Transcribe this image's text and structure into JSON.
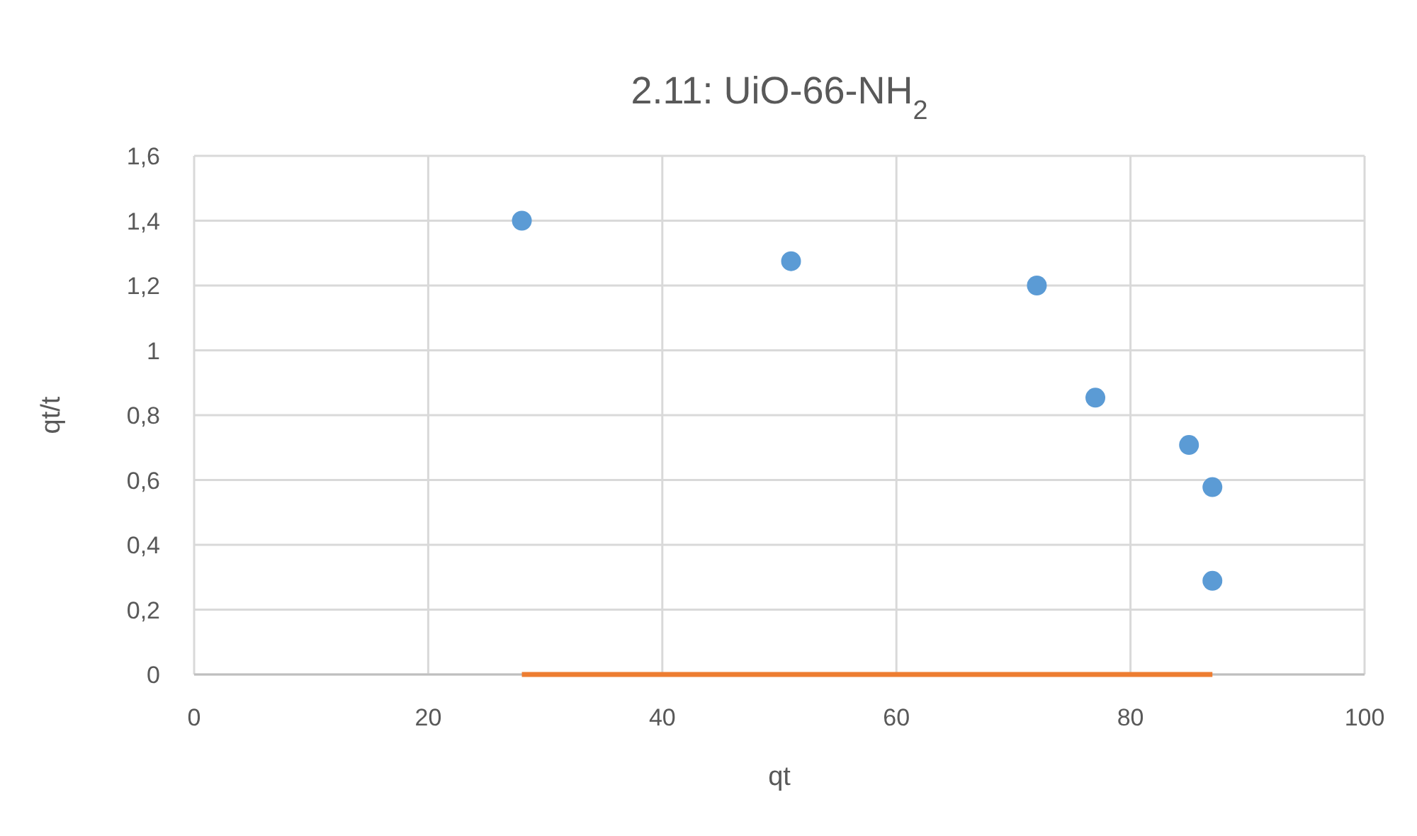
{
  "chart_data": {
    "type": "scatter",
    "title": "2.11: UiO-66-NH$_{2}$",
    "xlabel": "qt",
    "ylabel": "qt/t",
    "xlim": [
      0,
      100
    ],
    "xticks": [
      0,
      20,
      40,
      60,
      80,
      100
    ],
    "ylim": [
      0,
      1.6
    ],
    "yticks": [
      {
        "value": 0,
        "label": "0"
      },
      {
        "value": 0.2,
        "label": "0,2"
      },
      {
        "value": 0.4,
        "label": "0,4"
      },
      {
        "value": 0.6,
        "label": "0,6"
      },
      {
        "value": 0.8,
        "label": "0,8"
      },
      {
        "value": 1,
        "label": "1"
      },
      {
        "value": 1.2,
        "label": "1,2"
      },
      {
        "value": 1.4,
        "label": "1,4"
      },
      {
        "value": 1.6,
        "label": "1,6"
      }
    ],
    "grid": true,
    "series": [
      {
        "marker": "circle",
        "color": "#5b9bd5",
        "x": [
          28,
          51,
          72,
          77,
          85,
          87,
          87
        ],
        "values": [
          1.4,
          1.275,
          1.2,
          0.854,
          0.708,
          0.578,
          0.289
        ]
      },
      {
        "type": "line",
        "marker": "none",
        "color": "#ed7d31",
        "x": [
          28,
          87
        ],
        "values": [
          0,
          0
        ]
      }
    ]
  }
}
